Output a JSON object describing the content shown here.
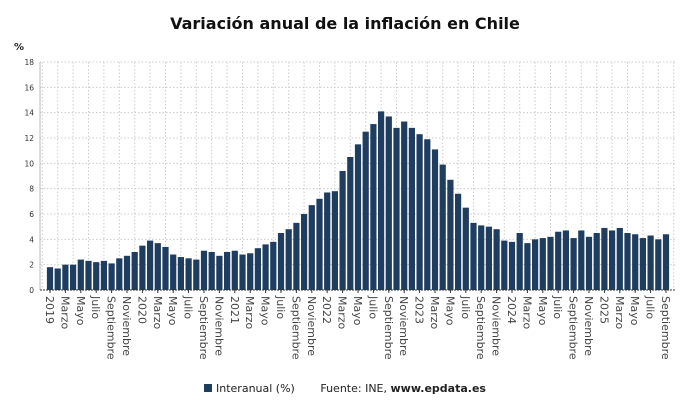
{
  "chart_data": {
    "type": "bar",
    "title": "Variación anual de la inflación en Chile",
    "ylabel": "%",
    "ylim": [
      0,
      18
    ],
    "yticks": [
      0,
      2,
      4,
      6,
      8,
      10,
      12,
      14,
      16,
      18
    ],
    "grid": true,
    "bar_color": "#1f3d5e",
    "legend_position": "bottom",
    "series": [
      {
        "name": "Interanual (%)",
        "values": [
          1.8,
          1.7,
          2.0,
          2.0,
          2.4,
          2.3,
          2.2,
          2.3,
          2.1,
          2.5,
          2.7,
          3.0,
          3.5,
          3.9,
          3.7,
          3.4,
          2.8,
          2.6,
          2.5,
          2.4,
          3.1,
          3.0,
          2.7,
          3.0,
          3.1,
          2.8,
          2.9,
          3.3,
          3.6,
          3.8,
          4.5,
          4.8,
          5.3,
          6.0,
          6.7,
          7.2,
          7.7,
          7.8,
          9.4,
          10.5,
          11.5,
          12.5,
          13.1,
          14.1,
          13.7,
          12.8,
          13.3,
          12.8,
          12.3,
          11.9,
          11.1,
          9.9,
          8.7,
          7.6,
          6.5,
          5.3,
          5.1,
          5.0,
          4.8,
          3.9,
          3.8,
          4.5,
          3.7,
          4.0,
          4.1,
          4.2,
          4.6,
          4.7,
          4.1,
          4.7,
          4.2,
          4.5,
          4.9,
          4.7,
          4.9,
          4.5,
          4.4,
          4.1,
          4.3,
          4.0,
          4.4
        ]
      }
    ],
    "x_tick_labels": [
      "2019",
      "Marzo",
      "Mayo",
      "Julio",
      "Septiembre",
      "Noviembre",
      "2020",
      "Marzo",
      "Mayo",
      "Julio",
      "Septiembre",
      "Noviembre",
      "2021",
      "Marzo",
      "Mayo",
      "Julio",
      "Septiembre",
      "Noviembre",
      "2022",
      "Marzo",
      "Mayo",
      "Julio",
      "Septiembre",
      "Noviembre",
      "2023",
      "Marzo",
      "Mayo",
      "Julio",
      "Septiembre",
      "Noviembre",
      "2024",
      "Marzo",
      "Mayo",
      "Julio",
      "Septiembre",
      "Noviembre",
      "2025",
      "Marzo",
      "Mayo",
      "Julio",
      "Septiembre"
    ]
  },
  "legend": {
    "series_label": "Interanual (%)",
    "source_prefix": "Fuente: INE, ",
    "source_site": "www.epdata.es"
  }
}
